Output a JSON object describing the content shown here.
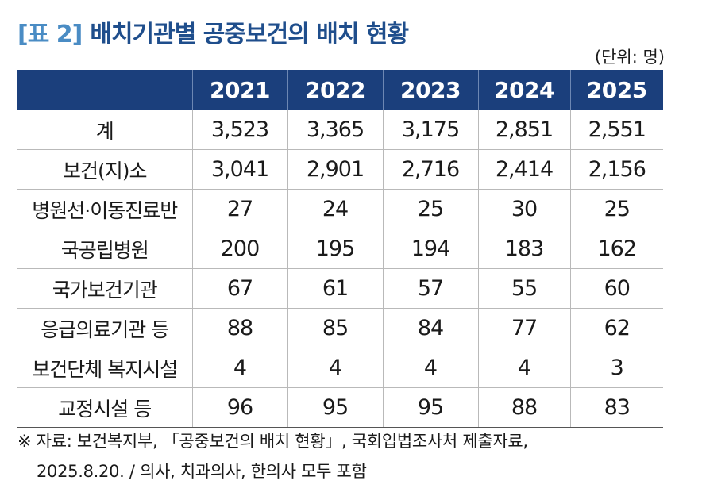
{
  "header": {
    "tag": "[표 2]",
    "title": "배치기관별 공중보건의 배치 현황",
    "unit": "(단위: 명)"
  },
  "table": {
    "columns": [
      "2021",
      "2022",
      "2023",
      "2024",
      "2025"
    ],
    "rows": [
      [
        "계",
        "3,523",
        "3,365",
        "3,175",
        "2,851",
        "2,551"
      ],
      [
        "보건(지)소",
        "3,041",
        "2,901",
        "2,716",
        "2,414",
        "2,156"
      ],
      [
        "병원선·이동진료반",
        "27",
        "24",
        "25",
        "30",
        "25"
      ],
      [
        "국공립병원",
        "200",
        "195",
        "194",
        "183",
        "162"
      ],
      [
        "국가보건기관",
        "67",
        "61",
        "57",
        "55",
        "60"
      ],
      [
        "응급의료기관 등",
        "88",
        "85",
        "84",
        "77",
        "62"
      ],
      [
        "보건단체 복지시설",
        "4",
        "4",
        "4",
        "4",
        "3"
      ],
      [
        "교정시설 등",
        "96",
        "95",
        "95",
        "88",
        "83"
      ]
    ]
  },
  "footnote": [
    "※ 자료: 보건복지부, 「공중보건의 배치 현황」, 국회입법조사처 제출자료,",
    "2025.8.20. / 의사, 치과의사, 한의사 모두 포함"
  ]
}
